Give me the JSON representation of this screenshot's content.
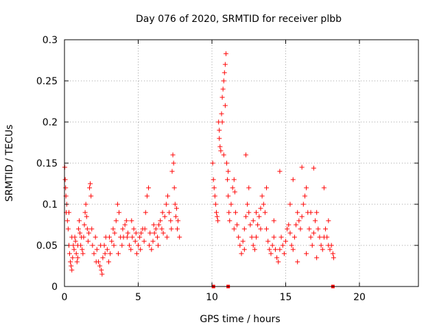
{
  "chart_data": {
    "type": "scatter",
    "title": "Day 076 of 2020, SRMTID for receiver plbb",
    "xlabel": "GPS time / hours",
    "ylabel": "SRMTID / TECUs",
    "xlim": [
      0,
      24
    ],
    "ylim": [
      0,
      0.3
    ],
    "x_ticks": [
      0,
      5,
      10,
      15,
      20
    ],
    "x_tick_labels": [
      "0",
      "5",
      "10",
      "15",
      "20"
    ],
    "y_ticks": [
      0,
      0.05,
      0.1,
      0.15,
      0.2,
      0.25,
      0.3
    ],
    "y_tick_labels": [
      "0",
      "0.05",
      "0.1",
      "0.15",
      "0.2",
      "0.25",
      "0.3"
    ],
    "grid": true,
    "marker": "+",
    "color": "#ff0000",
    "series": [
      {
        "name": "SRMTID",
        "points": [
          [
            0.02,
            0.145
          ],
          [
            0.05,
            0.13
          ],
          [
            0.08,
            0.12
          ],
          [
            0.1,
            0.11
          ],
          [
            0.12,
            0.09
          ],
          [
            0.15,
            0.1
          ],
          [
            0.2,
            0.08
          ],
          [
            0.25,
            0.07
          ],
          [
            0.3,
            0.05
          ],
          [
            0.35,
            0.04
          ],
          [
            0.4,
            0.03
          ],
          [
            0.45,
            0.025
          ],
          [
            0.5,
            0.02
          ],
          [
            0.55,
            0.035
          ],
          [
            0.6,
            0.05
          ],
          [
            0.65,
            0.045
          ],
          [
            0.7,
            0.06
          ],
          [
            0.75,
            0.055
          ],
          [
            0.8,
            0.04
          ],
          [
            0.85,
            0.03
          ],
          [
            0.9,
            0.05
          ],
          [
            0.95,
            0.07
          ],
          [
            1.0,
            0.08
          ],
          [
            1.05,
            0.065
          ],
          [
            1.1,
            0.05
          ],
          [
            1.15,
            0.06
          ],
          [
            1.2,
            0.045
          ],
          [
            1.3,
            0.06
          ],
          [
            1.35,
            0.075
          ],
          [
            1.4,
            0.09
          ],
          [
            1.45,
            0.1
          ],
          [
            1.5,
            0.085
          ],
          [
            1.55,
            0.07
          ],
          [
            1.6,
            0.055
          ],
          [
            1.7,
            0.12
          ],
          [
            1.75,
            0.125
          ],
          [
            1.8,
            0.11
          ],
          [
            1.85,
            0.07
          ],
          [
            1.9,
            0.05
          ],
          [
            2.0,
            0.04
          ],
          [
            2.1,
            0.06
          ],
          [
            2.2,
            0.045
          ],
          [
            2.3,
            0.03
          ],
          [
            2.4,
            0.025
          ],
          [
            2.5,
            0.02
          ],
          [
            2.55,
            0.015
          ],
          [
            2.6,
            0.035
          ],
          [
            2.7,
            0.05
          ],
          [
            2.8,
            0.06
          ],
          [
            2.9,
            0.045
          ],
          [
            3.0,
            0.03
          ],
          [
            3.1,
            0.04
          ],
          [
            3.2,
            0.055
          ],
          [
            3.3,
            0.07
          ],
          [
            3.4,
            0.065
          ],
          [
            3.5,
            0.08
          ],
          [
            3.6,
            0.1
          ],
          [
            3.7,
            0.09
          ],
          [
            3.8,
            0.06
          ],
          [
            3.9,
            0.05
          ],
          [
            4.0,
            0.06
          ],
          [
            4.1,
            0.075
          ],
          [
            4.2,
            0.08
          ],
          [
            4.3,
            0.065
          ],
          [
            4.4,
            0.05
          ],
          [
            4.5,
            0.045
          ],
          [
            4.6,
            0.06
          ],
          [
            4.7,
            0.07
          ],
          [
            4.8,
            0.055
          ],
          [
            4.9,
            0.04
          ],
          [
            5.0,
            0.05
          ],
          [
            5.1,
            0.06
          ],
          [
            5.2,
            0.065
          ],
          [
            5.3,
            0.07
          ],
          [
            5.4,
            0.055
          ],
          [
            5.5,
            0.09
          ],
          [
            5.6,
            0.11
          ],
          [
            5.7,
            0.12
          ],
          [
            5.8,
            0.065
          ],
          [
            5.9,
            0.045
          ],
          [
            6.0,
            0.055
          ],
          [
            6.1,
            0.065
          ],
          [
            6.2,
            0.07
          ],
          [
            6.3,
            0.06
          ],
          [
            6.4,
            0.075
          ],
          [
            6.5,
            0.08
          ],
          [
            6.6,
            0.07
          ],
          [
            6.7,
            0.065
          ],
          [
            6.8,
            0.085
          ],
          [
            6.9,
            0.1
          ],
          [
            7.0,
            0.11
          ],
          [
            7.1,
            0.09
          ],
          [
            7.2,
            0.08
          ],
          [
            7.3,
            0.14
          ],
          [
            7.35,
            0.16
          ],
          [
            7.4,
            0.15
          ],
          [
            7.45,
            0.12
          ],
          [
            7.5,
            0.1
          ],
          [
            7.55,
            0.085
          ],
          [
            7.6,
            0.095
          ],
          [
            7.7,
            0.08
          ],
          [
            7.8,
            0.06
          ],
          [
            0.3,
            0.09
          ],
          [
            0.5,
            0.06
          ],
          [
            0.9,
            0.035
          ],
          [
            1.25,
            0.04
          ],
          [
            1.65,
            0.065
          ],
          [
            2.15,
            0.03
          ],
          [
            2.45,
            0.05
          ],
          [
            2.75,
            0.04
          ],
          [
            3.05,
            0.06
          ],
          [
            3.35,
            0.05
          ],
          [
            3.65,
            0.04
          ],
          [
            3.95,
            0.07
          ],
          [
            4.25,
            0.06
          ],
          [
            4.55,
            0.08
          ],
          [
            4.85,
            0.065
          ],
          [
            5.15,
            0.045
          ],
          [
            5.45,
            0.07
          ],
          [
            5.75,
            0.05
          ],
          [
            6.05,
            0.075
          ],
          [
            6.35,
            0.05
          ],
          [
            6.65,
            0.09
          ],
          [
            6.95,
            0.06
          ],
          [
            7.25,
            0.07
          ],
          [
            7.65,
            0.07
          ],
          [
            10.05,
            0.15
          ],
          [
            10.1,
            0.13
          ],
          [
            10.15,
            0.12
          ],
          [
            10.2,
            0.11
          ],
          [
            10.25,
            0.1
          ],
          [
            10.3,
            0.09
          ],
          [
            10.35,
            0.085
          ],
          [
            10.4,
            0.08
          ],
          [
            10.45,
            0.2
          ],
          [
            10.5,
            0.19
          ],
          [
            10.55,
            0.17
          ],
          [
            10.6,
            0.165
          ],
          [
            10.65,
            0.21
          ],
          [
            10.7,
            0.23
          ],
          [
            10.75,
            0.24
          ],
          [
            10.8,
            0.25
          ],
          [
            10.85,
            0.26
          ],
          [
            10.9,
            0.27
          ],
          [
            10.95,
            0.283
          ],
          [
            11.0,
            0.15
          ],
          [
            11.05,
            0.13
          ],
          [
            11.1,
            0.11
          ],
          [
            11.15,
            0.09
          ],
          [
            11.2,
            0.08
          ],
          [
            11.3,
            0.1
          ],
          [
            11.4,
            0.12
          ],
          [
            11.5,
            0.13
          ],
          [
            11.55,
            0.115
          ],
          [
            11.6,
            0.09
          ],
          [
            11.7,
            0.075
          ],
          [
            11.8,
            0.06
          ],
          [
            11.9,
            0.05
          ],
          [
            12.0,
            0.04
          ],
          [
            12.1,
            0.055
          ],
          [
            12.2,
            0.07
          ],
          [
            12.3,
            0.085
          ],
          [
            12.4,
            0.1
          ],
          [
            12.5,
            0.09
          ],
          [
            12.6,
            0.075
          ],
          [
            12.7,
            0.06
          ],
          [
            12.8,
            0.05
          ],
          [
            12.9,
            0.045
          ],
          [
            13.0,
            0.06
          ],
          [
            13.1,
            0.075
          ],
          [
            13.2,
            0.085
          ],
          [
            13.3,
            0.095
          ],
          [
            13.4,
            0.11
          ],
          [
            13.5,
            0.1
          ],
          [
            13.6,
            0.09
          ],
          [
            13.7,
            0.07
          ],
          [
            13.8,
            0.055
          ],
          [
            13.9,
            0.045
          ],
          [
            14.0,
            0.04
          ],
          [
            14.1,
            0.05
          ],
          [
            14.2,
            0.06
          ],
          [
            14.3,
            0.045
          ],
          [
            14.4,
            0.035
          ],
          [
            14.5,
            0.03
          ],
          [
            14.6,
            0.045
          ],
          [
            14.7,
            0.06
          ],
          [
            14.8,
            0.05
          ],
          [
            14.9,
            0.04
          ],
          [
            15.0,
            0.055
          ],
          [
            15.1,
            0.07
          ],
          [
            15.2,
            0.075
          ],
          [
            15.3,
            0.065
          ],
          [
            15.4,
            0.05
          ],
          [
            15.5,
            0.045
          ],
          [
            15.6,
            0.06
          ],
          [
            15.7,
            0.075
          ],
          [
            15.8,
            0.09
          ],
          [
            15.9,
            0.08
          ],
          [
            16.0,
            0.07
          ],
          [
            16.1,
            0.085
          ],
          [
            16.2,
            0.1
          ],
          [
            16.3,
            0.11
          ],
          [
            16.4,
            0.12
          ],
          [
            16.5,
            0.09
          ],
          [
            16.6,
            0.07
          ],
          [
            16.7,
            0.06
          ],
          [
            16.8,
            0.05
          ],
          [
            16.9,
            0.065
          ],
          [
            17.0,
            0.08
          ],
          [
            17.1,
            0.09
          ],
          [
            17.2,
            0.07
          ],
          [
            17.3,
            0.06
          ],
          [
            17.4,
            0.05
          ],
          [
            17.5,
            0.045
          ],
          [
            17.6,
            0.06
          ],
          [
            17.7,
            0.07
          ],
          [
            17.8,
            0.06
          ],
          [
            17.9,
            0.05
          ],
          [
            18.0,
            0.045
          ],
          [
            18.1,
            0.05
          ],
          [
            18.2,
            0.04
          ],
          [
            18.25,
            0.035
          ],
          [
            10.5,
            0.18
          ],
          [
            10.7,
            0.2
          ],
          [
            10.8,
            0.16
          ],
          [
            10.9,
            0.22
          ],
          [
            11.1,
            0.14
          ],
          [
            11.5,
            0.07
          ],
          [
            12.3,
            0.16
          ],
          [
            12.5,
            0.12
          ],
          [
            12.8,
            0.08
          ],
          [
            13.3,
            0.07
          ],
          [
            13.7,
            0.12
          ],
          [
            14.6,
            0.14
          ],
          [
            15.5,
            0.13
          ],
          [
            16.1,
            0.145
          ],
          [
            16.9,
            0.144
          ],
          [
            17.6,
            0.12
          ],
          [
            15.8,
            0.03
          ],
          [
            16.4,
            0.04
          ],
          [
            17.1,
            0.035
          ],
          [
            12.2,
            0.045
          ],
          [
            13.0,
            0.09
          ],
          [
            14.2,
            0.08
          ],
          [
            15.3,
            0.1
          ],
          [
            16.7,
            0.09
          ],
          [
            17.9,
            0.08
          ]
        ]
      },
      {
        "name": "markers on x-axis",
        "points": [
          [
            10.1,
            0
          ],
          [
            11.1,
            0
          ],
          [
            18.2,
            0
          ]
        ]
      }
    ]
  }
}
